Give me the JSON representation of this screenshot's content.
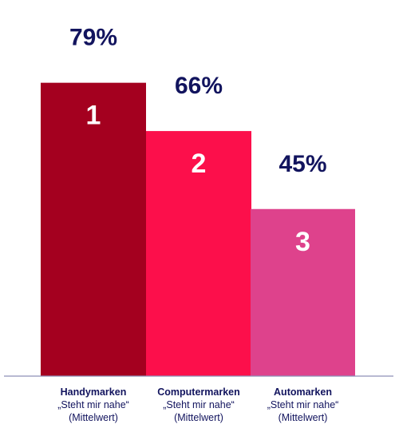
{
  "chart_data": {
    "type": "bar",
    "categories": [
      "Handymarken",
      "Computermarken",
      "Automarken"
    ],
    "category_sublabels": [
      "„Steht mir nahe“",
      "(Mittelwert)"
    ],
    "values": [
      79,
      66,
      45
    ],
    "value_labels": [
      "79%",
      "66%",
      "45%"
    ],
    "ranks": [
      "1",
      "2",
      "3"
    ],
    "colors": [
      "#a4001f",
      "#fc0f4b",
      "#de428c"
    ],
    "axis_color": "#8d8fb8",
    "ylim": [
      0,
      100
    ],
    "title": "",
    "xlabel": "",
    "ylabel": "",
    "grid": false,
    "legend": "none"
  }
}
